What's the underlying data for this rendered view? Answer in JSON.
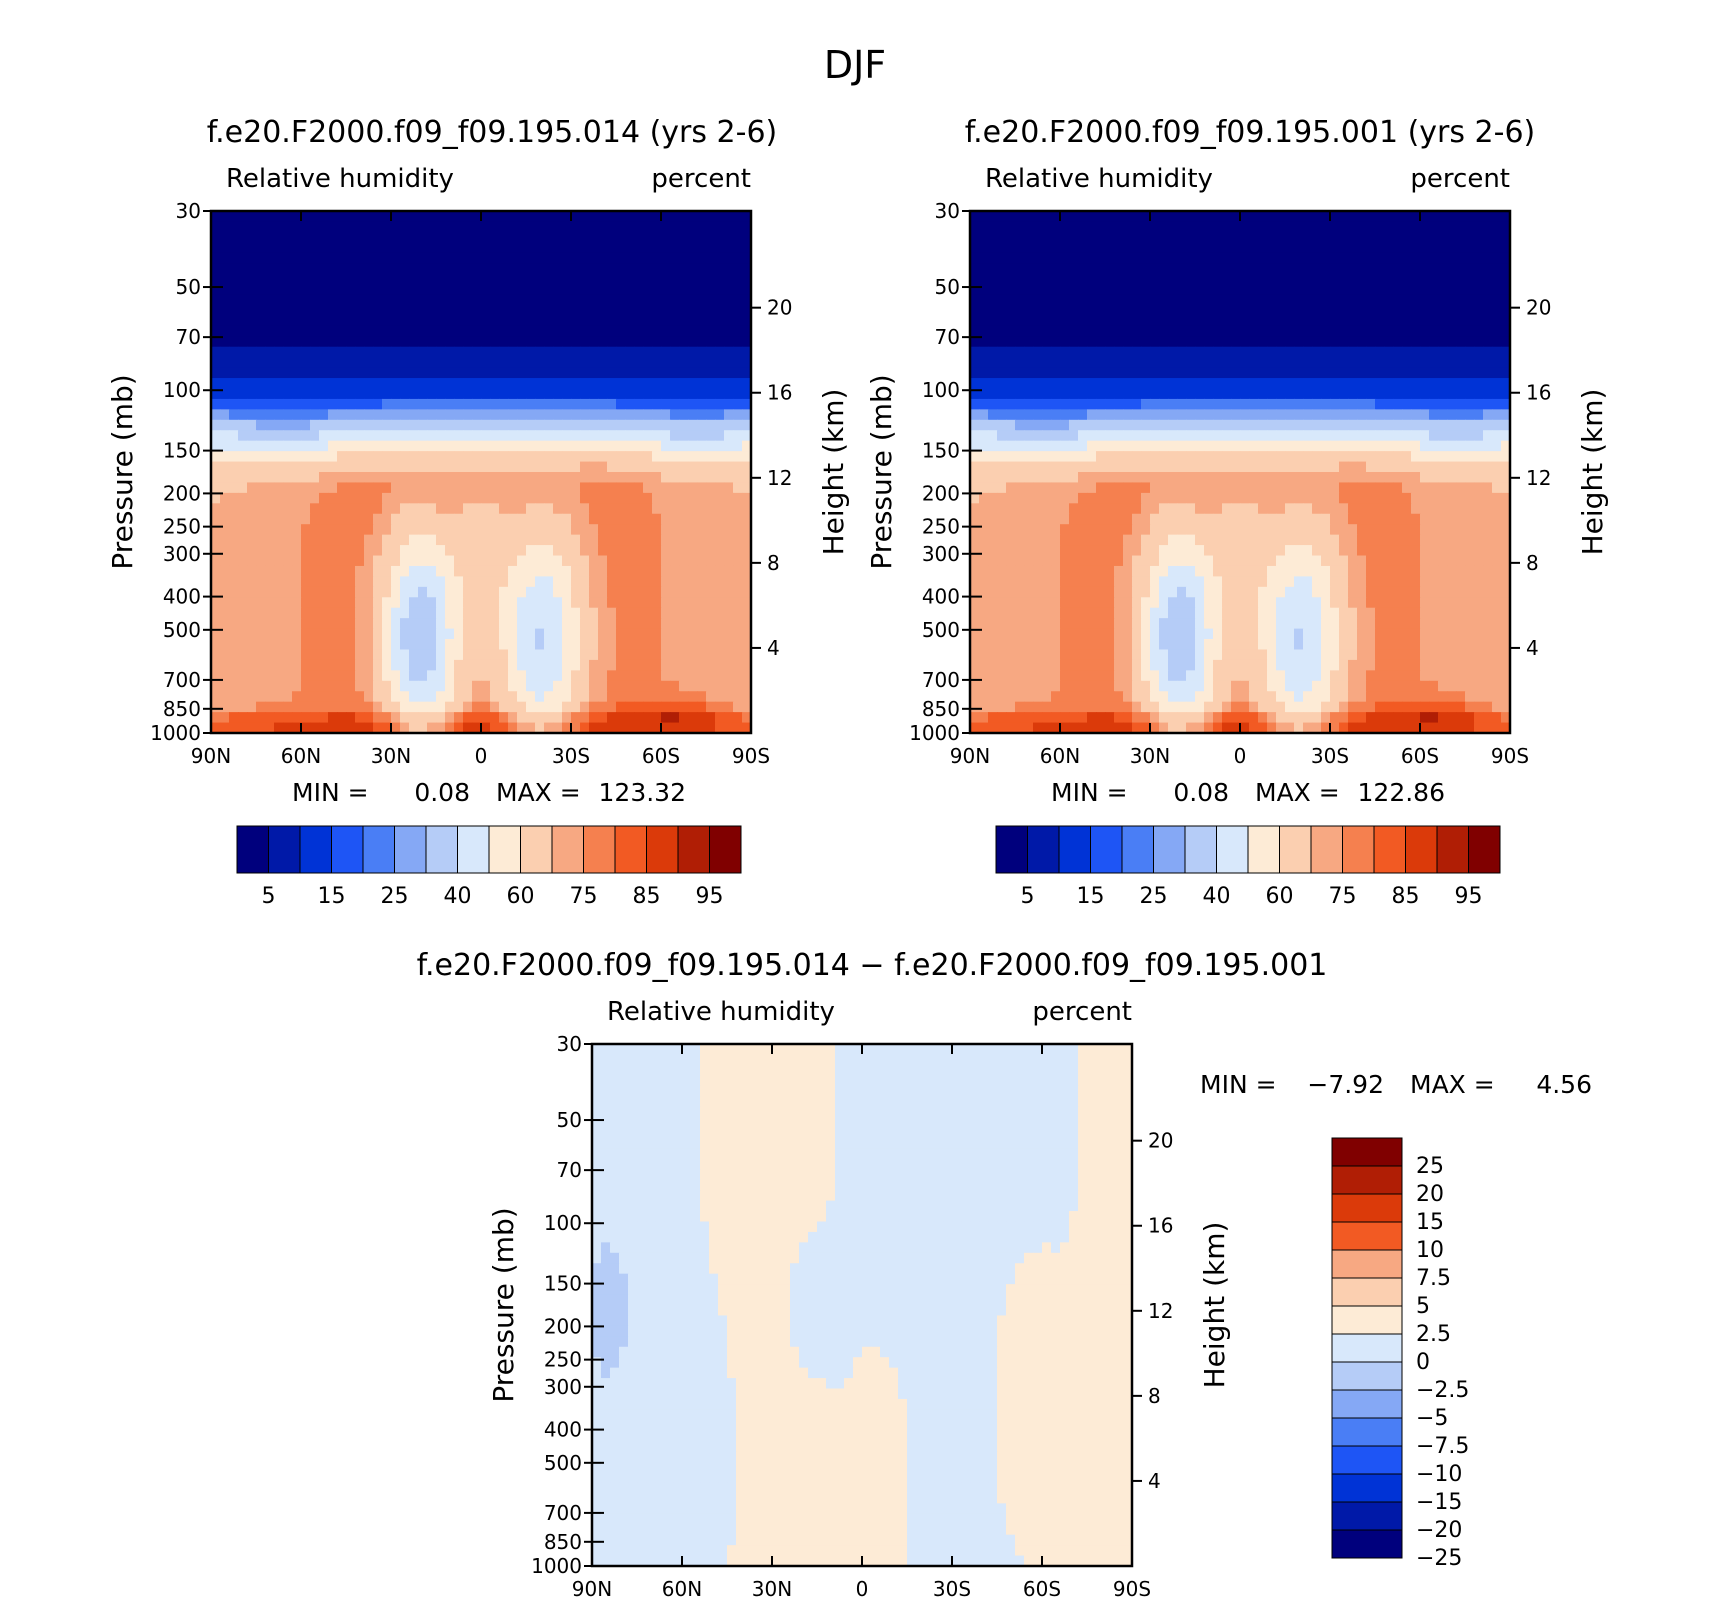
{
  "page": {
    "title": "DJF"
  },
  "chart_data": [
    {
      "type": "heatmap",
      "id": "panel1",
      "title": "f.e20.F2000.f09_f09.195.014 (yrs 2-6)",
      "left_label": "Relative humidity",
      "right_label": "percent",
      "ylabel": "Pressure (mb)",
      "y2label": "Height (km)",
      "x_ticks": [
        "90N",
        "60N",
        "30N",
        "0",
        "30S",
        "60S",
        "90S"
      ],
      "y_ticks": [
        "30",
        "50",
        "70",
        "100",
        "150",
        "200",
        "250",
        "300",
        "400",
        "500",
        "700",
        "850",
        "1000"
      ],
      "y2_ticks": [
        "20",
        "16",
        "12",
        "8",
        "4"
      ],
      "xlim": [
        90,
        -90
      ],
      "ylim": [
        1000,
        30
      ],
      "min_label": "MIN =",
      "min_value": "0.08",
      "max_label": "MAX =",
      "max_value": "123.32",
      "field": "rh_control",
      "colorbar": {
        "orientation": "horizontal",
        "labels": [
          "5",
          "15",
          "25",
          "40",
          "60",
          "75",
          "85",
          "95"
        ]
      }
    },
    {
      "type": "heatmap",
      "id": "panel2",
      "title": "f.e20.F2000.f09_f09.195.001 (yrs 2-6)",
      "left_label": "Relative humidity",
      "right_label": "percent",
      "ylabel": "Pressure (mb)",
      "y2label": "Height (km)",
      "x_ticks": [
        "90N",
        "60N",
        "30N",
        "0",
        "30S",
        "60S",
        "90S"
      ],
      "y_ticks": [
        "30",
        "50",
        "70",
        "100",
        "150",
        "200",
        "250",
        "300",
        "400",
        "500",
        "700",
        "850",
        "1000"
      ],
      "y2_ticks": [
        "20",
        "16",
        "12",
        "8",
        "4"
      ],
      "xlim": [
        90,
        -90
      ],
      "ylim": [
        1000,
        30
      ],
      "min_label": "MIN =",
      "min_value": "0.08",
      "max_label": "MAX =",
      "max_value": "122.86",
      "field": "rh_control",
      "colorbar": {
        "orientation": "horizontal",
        "labels": [
          "5",
          "15",
          "25",
          "40",
          "60",
          "75",
          "85",
          "95"
        ]
      }
    },
    {
      "type": "heatmap",
      "id": "panel3",
      "title": "f.e20.F2000.f09_f09.195.014 − f.e20.F2000.f09_f09.195.001",
      "left_label": "Relative humidity",
      "right_label": "percent",
      "ylabel": "Pressure (mb)",
      "y2label": "Height (km)",
      "x_ticks": [
        "90N",
        "60N",
        "30N",
        "0",
        "30S",
        "60S",
        "90S"
      ],
      "y_ticks": [
        "30",
        "50",
        "70",
        "100",
        "150",
        "200",
        "250",
        "300",
        "400",
        "500",
        "700",
        "850",
        "1000"
      ],
      "y2_ticks": [
        "20",
        "16",
        "12",
        "8",
        "4"
      ],
      "xlim": [
        90,
        -90
      ],
      "ylim": [
        1000,
        30
      ],
      "min_label": "MIN =",
      "min_value": "−7.92",
      "max_label": "MAX =",
      "max_value": "4.56",
      "field": "rh_diff",
      "colorbar": {
        "orientation": "vertical",
        "labels": [
          "25",
          "20",
          "15",
          "10",
          "7.5",
          "5",
          "2.5",
          "0",
          "−2.5",
          "−5",
          "−7.5",
          "−10",
          "−15",
          "−20",
          "−25"
        ]
      }
    }
  ],
  "colors": {
    "rh_palette": [
      "#00007d",
      "#0019a8",
      "#0033d6",
      "#1e55f5",
      "#4a7ef5",
      "#85a8f5",
      "#b5ccf7",
      "#d8e8fb",
      "#fdebd6",
      "#fbcfb0",
      "#f7a882",
      "#f5804f",
      "#f25a23",
      "#db3a0a",
      "#b01e05",
      "#800000"
    ],
    "diff_palette": [
      "#00007d",
      "#0019a8",
      "#0033d6",
      "#1e55f5",
      "#4a7ef5",
      "#85a8f5",
      "#b5ccf7",
      "#d8e8fb",
      "#fdebd6",
      "#fbcfb0",
      "#f7a882",
      "#f25a23",
      "#db3a0a",
      "#b01e05",
      "#800000"
    ]
  }
}
